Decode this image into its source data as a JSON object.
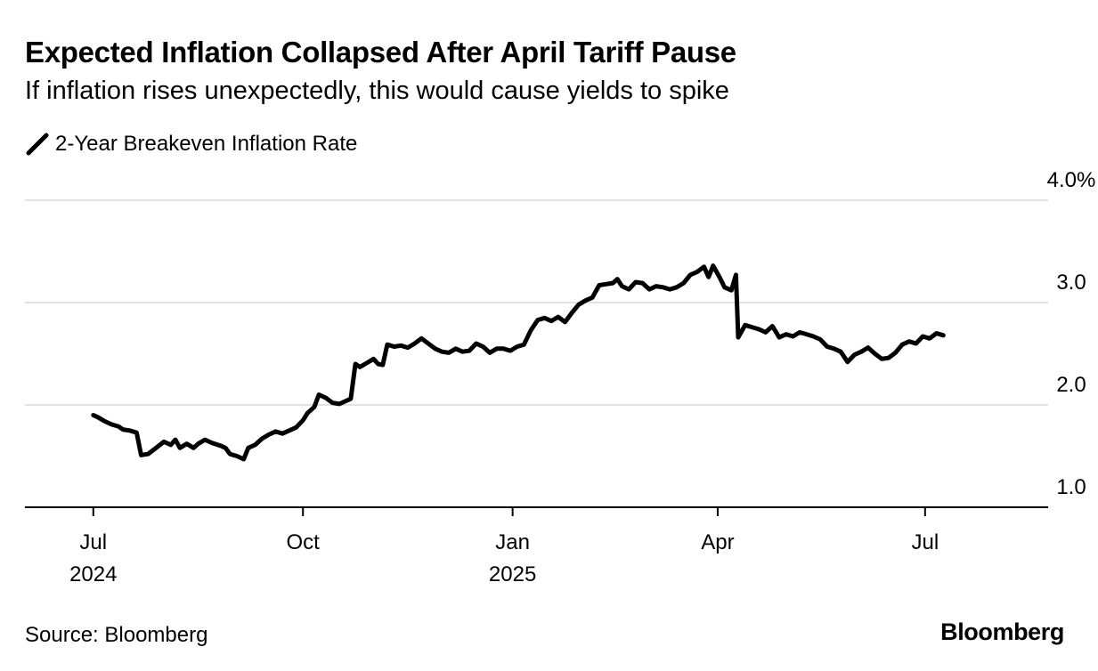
{
  "header": {
    "title": "Expected Inflation Collapsed After April Tariff Pause",
    "subtitle": "If inflation rises unexpectedly, this would cause yields to spike"
  },
  "footer": {
    "source": "Source: Bloomberg",
    "brand": "Bloomberg"
  },
  "colors": {
    "line": "#000000",
    "grid": "#d9d9d9",
    "axis": "#000000"
  },
  "chart_data": {
    "type": "line",
    "title": "Expected Inflation Collapsed After April Tariff Pause",
    "subtitle": "If inflation rises unexpectedly, this would cause yields to spike",
    "legend": "top-left",
    "grid": true,
    "yaxis_side": "right",
    "ylim": [
      1.0,
      4.0
    ],
    "yticks": [
      {
        "value": 4.0,
        "label": "4.0%"
      },
      {
        "value": 3.0,
        "label": "3.0"
      },
      {
        "value": 2.0,
        "label": "2.0"
      },
      {
        "value": 1.0,
        "label": "1.0"
      }
    ],
    "xlim": [
      "2024-06-01",
      "2025-08-24"
    ],
    "xticks": [
      {
        "date": "2024-07-01",
        "label": "Jul",
        "sublabel": "2024"
      },
      {
        "date": "2024-10-01",
        "label": "Oct",
        "sublabel": ""
      },
      {
        "date": "2025-01-01",
        "label": "Jan",
        "sublabel": "2025"
      },
      {
        "date": "2025-04-01",
        "label": "Apr",
        "sublabel": ""
      },
      {
        "date": "2025-07-01",
        "label": "Jul",
        "sublabel": ""
      }
    ],
    "series": [
      {
        "name": "2-Year Breakeven Inflation Rate",
        "points": [
          [
            "2024-07-01",
            1.9
          ],
          [
            "2024-07-03",
            1.88
          ],
          [
            "2024-07-06",
            1.84
          ],
          [
            "2024-07-09",
            1.81
          ],
          [
            "2024-07-12",
            1.79
          ],
          [
            "2024-07-14",
            1.76
          ],
          [
            "2024-07-17",
            1.75
          ],
          [
            "2024-07-20",
            1.73
          ],
          [
            "2024-07-22",
            1.51
          ],
          [
            "2024-07-25",
            1.52
          ],
          [
            "2024-07-28",
            1.57
          ],
          [
            "2024-08-01",
            1.64
          ],
          [
            "2024-08-04",
            1.61
          ],
          [
            "2024-08-06",
            1.66
          ],
          [
            "2024-08-08",
            1.58
          ],
          [
            "2024-08-11",
            1.62
          ],
          [
            "2024-08-14",
            1.58
          ],
          [
            "2024-08-16",
            1.62
          ],
          [
            "2024-08-19",
            1.66
          ],
          [
            "2024-08-22",
            1.63
          ],
          [
            "2024-08-26",
            1.6
          ],
          [
            "2024-08-28",
            1.58
          ],
          [
            "2024-08-30",
            1.52
          ],
          [
            "2024-09-02",
            1.5
          ],
          [
            "2024-09-05",
            1.47
          ],
          [
            "2024-09-07",
            1.58
          ],
          [
            "2024-09-10",
            1.61
          ],
          [
            "2024-09-13",
            1.67
          ],
          [
            "2024-09-16",
            1.71
          ],
          [
            "2024-09-19",
            1.74
          ],
          [
            "2024-09-22",
            1.72
          ],
          [
            "2024-09-25",
            1.75
          ],
          [
            "2024-09-28",
            1.78
          ],
          [
            "2024-10-01",
            1.85
          ],
          [
            "2024-10-03",
            1.92
          ],
          [
            "2024-10-06",
            1.98
          ],
          [
            "2024-10-08",
            2.1
          ],
          [
            "2024-10-11",
            2.07
          ],
          [
            "2024-10-14",
            2.02
          ],
          [
            "2024-10-17",
            2.01
          ],
          [
            "2024-10-20",
            2.04
          ],
          [
            "2024-10-22",
            2.06
          ],
          [
            "2024-10-24",
            2.4
          ],
          [
            "2024-10-26",
            2.37
          ],
          [
            "2024-10-29",
            2.41
          ],
          [
            "2024-11-01",
            2.45
          ],
          [
            "2024-11-03",
            2.4
          ],
          [
            "2024-11-05",
            2.39
          ],
          [
            "2024-11-07",
            2.59
          ],
          [
            "2024-11-10",
            2.57
          ],
          [
            "2024-11-13",
            2.58
          ],
          [
            "2024-11-16",
            2.56
          ],
          [
            "2024-11-19",
            2.6
          ],
          [
            "2024-11-22",
            2.65
          ],
          [
            "2024-11-25",
            2.6
          ],
          [
            "2024-11-28",
            2.55
          ],
          [
            "2024-12-01",
            2.52
          ],
          [
            "2024-12-04",
            2.51
          ],
          [
            "2024-12-07",
            2.55
          ],
          [
            "2024-12-10",
            2.52
          ],
          [
            "2024-12-13",
            2.53
          ],
          [
            "2024-12-16",
            2.6
          ],
          [
            "2024-12-19",
            2.57
          ],
          [
            "2024-12-22",
            2.51
          ],
          [
            "2024-12-25",
            2.55
          ],
          [
            "2024-12-28",
            2.55
          ],
          [
            "2024-12-31",
            2.53
          ],
          [
            "2025-01-03",
            2.57
          ],
          [
            "2025-01-06",
            2.59
          ],
          [
            "2025-01-09",
            2.73
          ],
          [
            "2025-01-12",
            2.83
          ],
          [
            "2025-01-15",
            2.85
          ],
          [
            "2025-01-18",
            2.82
          ],
          [
            "2025-01-21",
            2.86
          ],
          [
            "2025-01-24",
            2.81
          ],
          [
            "2025-01-27",
            2.9
          ],
          [
            "2025-01-30",
            2.98
          ],
          [
            "2025-02-02",
            3.02
          ],
          [
            "2025-02-05",
            3.05
          ],
          [
            "2025-02-08",
            3.17
          ],
          [
            "2025-02-11",
            3.18
          ],
          [
            "2025-02-14",
            3.19
          ],
          [
            "2025-02-16",
            3.23
          ],
          [
            "2025-02-18",
            3.16
          ],
          [
            "2025-02-21",
            3.13
          ],
          [
            "2025-02-24",
            3.2
          ],
          [
            "2025-02-27",
            3.19
          ],
          [
            "2025-03-02",
            3.13
          ],
          [
            "2025-03-05",
            3.16
          ],
          [
            "2025-03-08",
            3.15
          ],
          [
            "2025-03-11",
            3.13
          ],
          [
            "2025-03-14",
            3.15
          ],
          [
            "2025-03-17",
            3.19
          ],
          [
            "2025-03-20",
            3.27
          ],
          [
            "2025-03-23",
            3.3
          ],
          [
            "2025-03-26",
            3.35
          ],
          [
            "2025-03-28",
            3.25
          ],
          [
            "2025-03-30",
            3.36
          ],
          [
            "2025-04-02",
            3.24
          ],
          [
            "2025-04-04",
            3.15
          ],
          [
            "2025-04-07",
            3.12
          ],
          [
            "2025-04-09",
            3.27
          ],
          [
            "2025-04-10",
            2.66
          ],
          [
            "2025-04-13",
            2.78
          ],
          [
            "2025-04-16",
            2.76
          ],
          [
            "2025-04-19",
            2.74
          ],
          [
            "2025-04-22",
            2.71
          ],
          [
            "2025-04-25",
            2.77
          ],
          [
            "2025-04-28",
            2.66
          ],
          [
            "2025-05-01",
            2.69
          ],
          [
            "2025-05-04",
            2.67
          ],
          [
            "2025-05-07",
            2.71
          ],
          [
            "2025-05-10",
            2.69
          ],
          [
            "2025-05-13",
            2.67
          ],
          [
            "2025-05-16",
            2.64
          ],
          [
            "2025-05-19",
            2.57
          ],
          [
            "2025-05-22",
            2.55
          ],
          [
            "2025-05-25",
            2.52
          ],
          [
            "2025-05-28",
            2.42
          ],
          [
            "2025-05-31",
            2.49
          ],
          [
            "2025-06-03",
            2.52
          ],
          [
            "2025-06-06",
            2.56
          ],
          [
            "2025-06-09",
            2.5
          ],
          [
            "2025-06-12",
            2.45
          ],
          [
            "2025-06-15",
            2.46
          ],
          [
            "2025-06-18",
            2.51
          ],
          [
            "2025-06-21",
            2.59
          ],
          [
            "2025-06-24",
            2.62
          ],
          [
            "2025-06-27",
            2.6
          ],
          [
            "2025-06-30",
            2.67
          ],
          [
            "2025-07-03",
            2.65
          ],
          [
            "2025-07-06",
            2.7
          ],
          [
            "2025-07-09",
            2.68
          ]
        ]
      }
    ]
  }
}
